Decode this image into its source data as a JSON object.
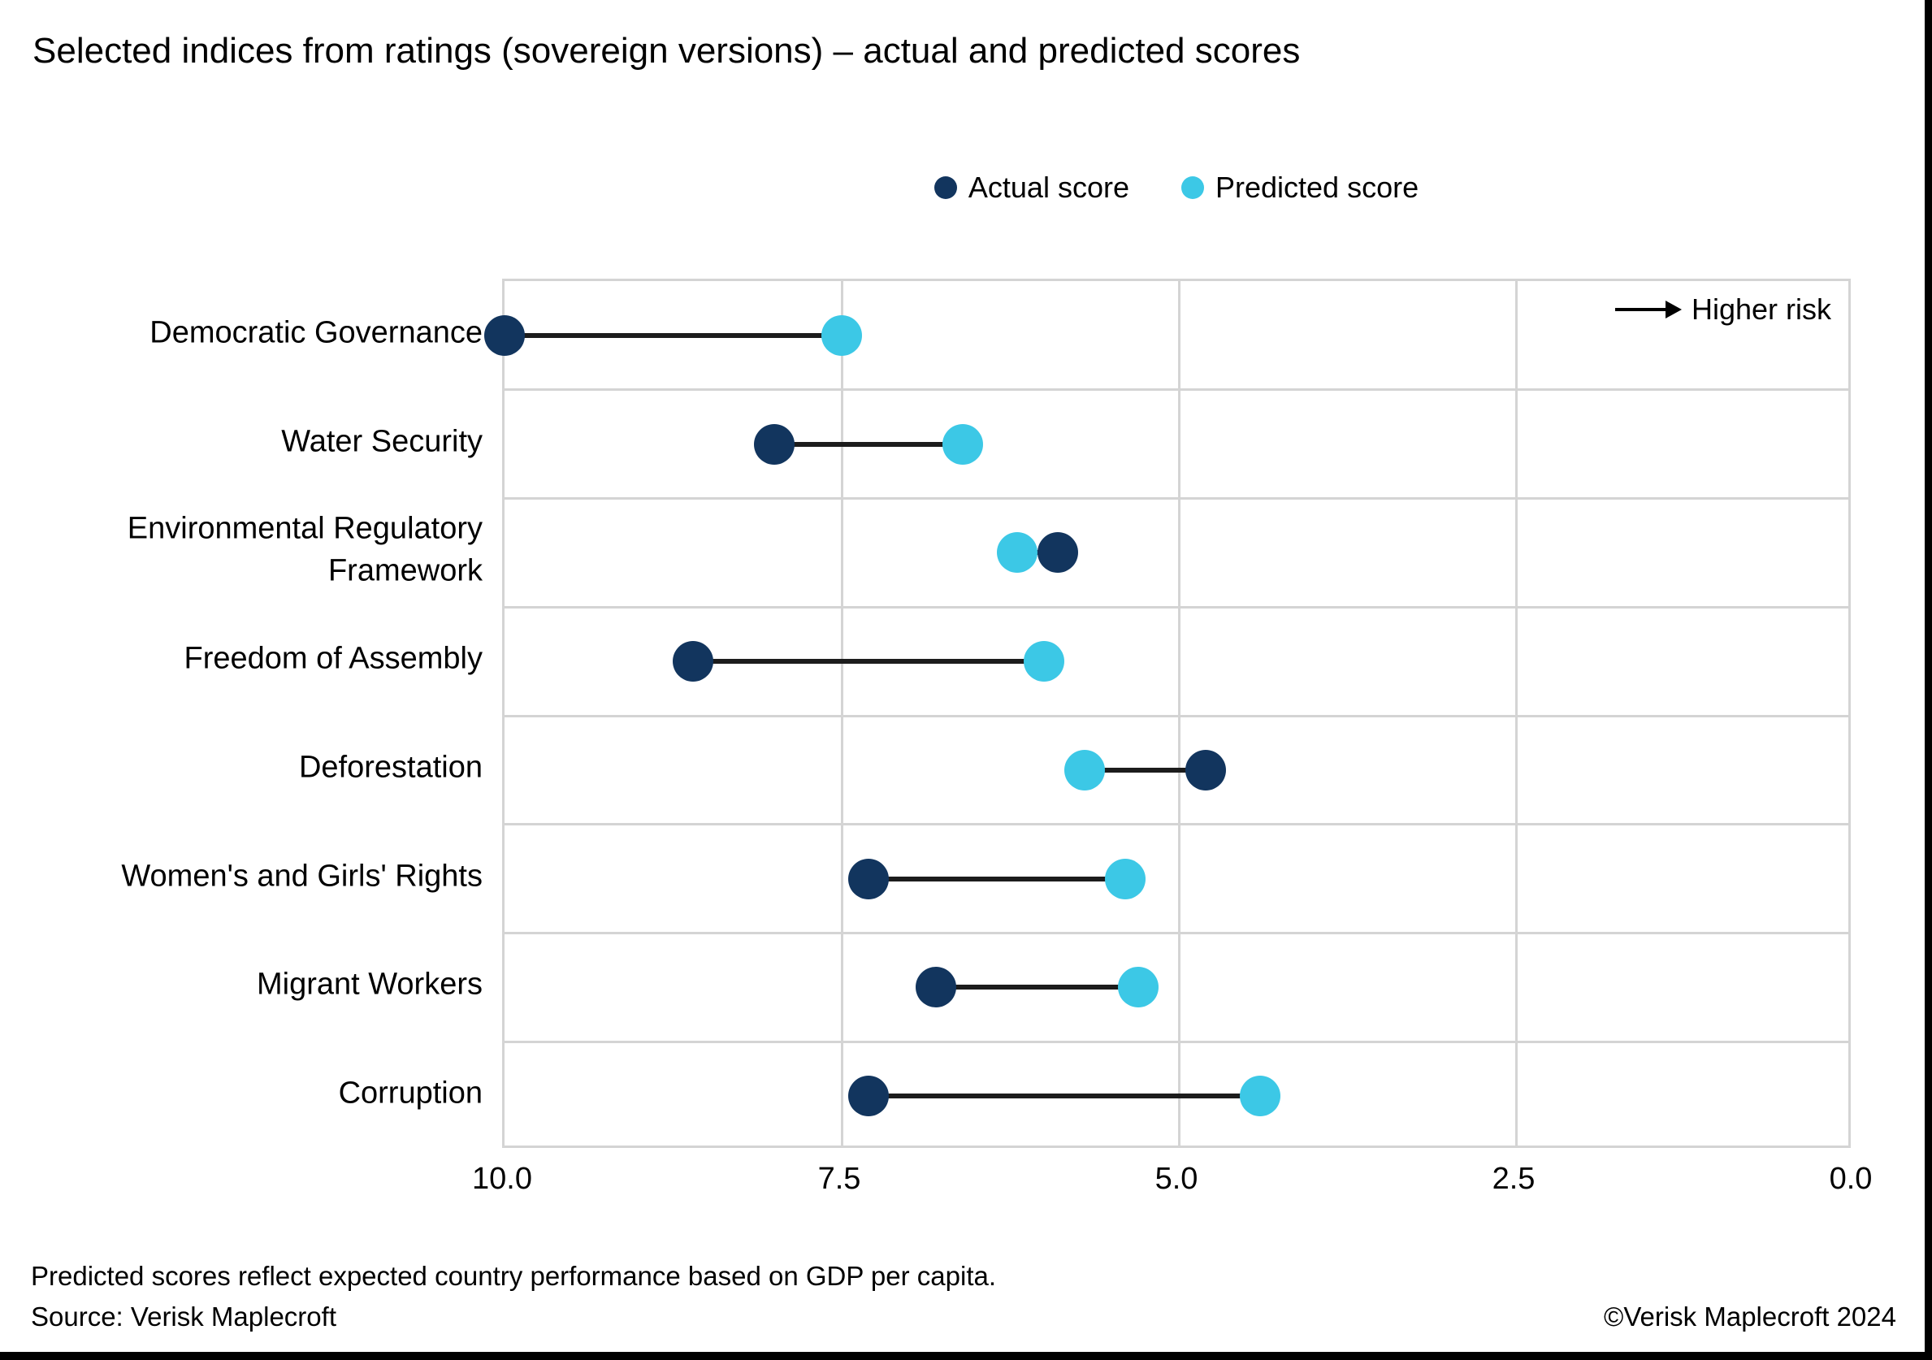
{
  "title": "Selected indices from ratings (sovereign versions) – actual and predicted scores",
  "legend": [
    {
      "label": "Actual score",
      "color": "#12355e"
    },
    {
      "label": "Predicted score",
      "color": "#3cc8e6"
    }
  ],
  "annotation": {
    "text": "Higher risk"
  },
  "chart_data": {
    "type": "dumbbell",
    "orientation": "horizontal",
    "categories": [
      "Democratic Governance",
      "Water Security",
      "Environmental Regulatory Framework",
      "Freedom of Assembly",
      "Deforestation",
      "Women's and Girls' Rights",
      "Migrant Workers",
      "Corruption"
    ],
    "series": [
      {
        "name": "Actual score",
        "color": "#12355e",
        "values": [
          10.0,
          8.0,
          5.9,
          8.6,
          4.8,
          7.3,
          6.8,
          7.3
        ]
      },
      {
        "name": "Predicted score",
        "color": "#3cc8e6",
        "values": [
          7.5,
          6.6,
          6.2,
          6.0,
          5.7,
          5.4,
          5.3,
          4.4
        ]
      }
    ],
    "xaxis": {
      "min": 0,
      "max": 10,
      "reversed": true,
      "tick_values": [
        10,
        7.5,
        5,
        2.5,
        0
      ],
      "tick_labels": [
        "10.0",
        "7.5",
        "5.0",
        "2.5",
        "0.0"
      ],
      "direction_note": "Higher risk toward lower scores (right)"
    },
    "grid": true,
    "legend_position": "top-center",
    "colors": {
      "grid": "#d4d4d4",
      "connector": "#1c1c1c"
    }
  },
  "footer": {
    "note": "Predicted scores reflect expected country performance based on GDP per capita.",
    "source": "Source: Verisk Maplecroft",
    "copyright": "©Verisk Maplecroft 2024"
  }
}
